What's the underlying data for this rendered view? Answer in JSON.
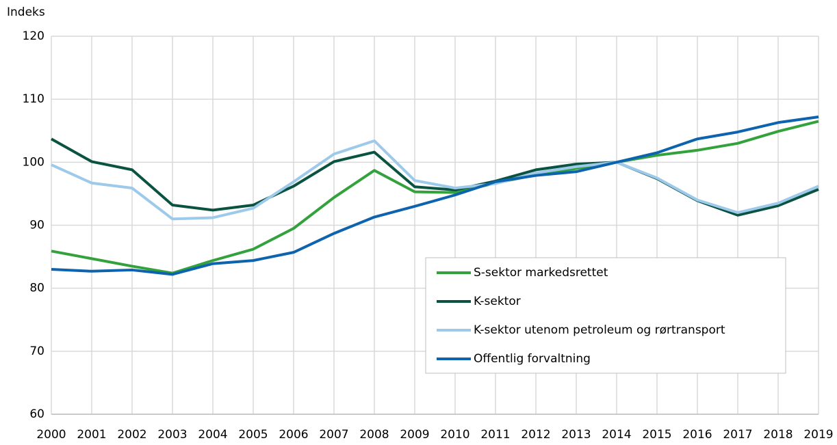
{
  "chart_data": {
    "type": "line",
    "y_label": "Indeks",
    "categories": [
      "2000",
      "2001",
      "2002",
      "2003",
      "2004",
      "2005",
      "2006",
      "2007",
      "2008",
      "2009",
      "2010",
      "2011",
      "2012",
      "2013",
      "2014",
      "2015",
      "2016",
      "2017",
      "2018",
      "2019"
    ],
    "series": [
      {
        "name": "S-sektor markedsrettet",
        "color": "#33a23c",
        "values": [
          85.9,
          84.7,
          83.5,
          82.4,
          84.4,
          86.2,
          89.5,
          94.4,
          98.7,
          95.3,
          95.2,
          96.7,
          98.0,
          99.0,
          100,
          101.1,
          101.9,
          103.0,
          104.9,
          106.5
        ]
      },
      {
        "name": "K-sektor",
        "color": "#0b5341",
        "values": [
          103.7,
          100.1,
          98.8,
          93.2,
          92.4,
          93.2,
          96.2,
          100.1,
          101.6,
          96.1,
          95.6,
          97.0,
          98.8,
          99.7,
          100,
          97.4,
          93.9,
          91.6,
          93.1,
          95.7
        ]
      },
      {
        "name": "K-sektor utenom petroleum og rørtransport",
        "color": "#9dc9ea",
        "values": [
          99.6,
          96.7,
          95.9,
          91.0,
          91.2,
          92.7,
          96.9,
          101.3,
          103.4,
          97.1,
          95.9,
          96.6,
          98.3,
          99.3,
          100,
          97.5,
          94.0,
          92.0,
          93.5,
          96.2
        ]
      },
      {
        "name": "Offentlig forvaltning",
        "color": "#0d63ad",
        "values": [
          83.0,
          82.7,
          82.9,
          82.2,
          83.9,
          84.4,
          85.7,
          88.7,
          91.3,
          93.0,
          94.8,
          96.9,
          97.9,
          98.5,
          100,
          101.5,
          103.7,
          104.8,
          106.3,
          107.2
        ]
      }
    ],
    "ylim": [
      60,
      120
    ],
    "yticks": [
      60,
      70,
      80,
      90,
      100,
      110,
      120
    ],
    "grid": true,
    "legend": "lower right"
  }
}
